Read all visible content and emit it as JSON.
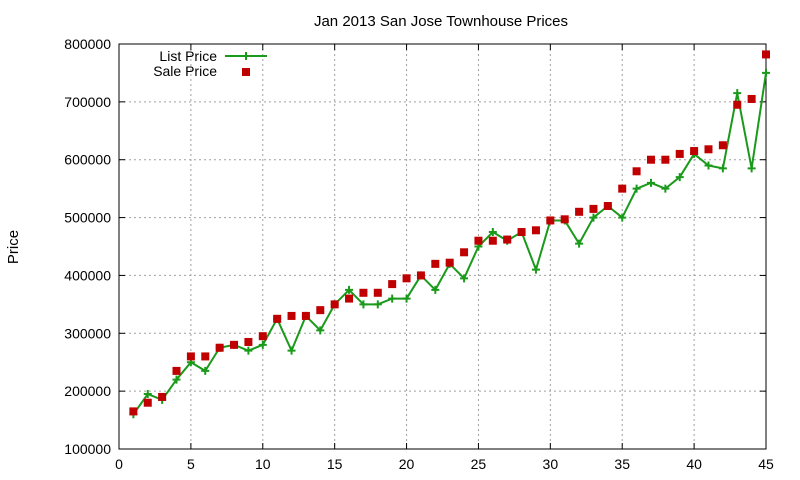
{
  "chart_data": {
    "type": "line",
    "title": "Jan 2013 San Jose Townhouse Prices",
    "xlabel": "",
    "ylabel": "Price",
    "xlim": [
      0,
      45
    ],
    "ylim": [
      100000,
      800000
    ],
    "x_ticks": [
      "0",
      "5",
      "10",
      "15",
      "20",
      "25",
      "30",
      "35",
      "40",
      "45"
    ],
    "y_ticks": [
      "100000",
      "200000",
      "300000",
      "400000",
      "500000",
      "600000",
      "700000",
      "800000"
    ],
    "grid": true,
    "legend_position": "top-left",
    "series": [
      {
        "name": "List Price",
        "style": "line-with-plus-markers",
        "color": "#1a9a1a",
        "x": [
          1,
          2,
          3,
          4,
          5,
          6,
          7,
          8,
          9,
          10,
          11,
          12,
          13,
          14,
          15,
          16,
          17,
          18,
          19,
          20,
          21,
          22,
          23,
          24,
          25,
          26,
          27,
          28,
          29,
          30,
          31,
          32,
          33,
          34,
          35,
          36,
          37,
          38,
          39,
          40,
          41,
          42,
          43,
          44,
          45
        ],
        "values": [
          160000,
          195000,
          185000,
          220000,
          250000,
          235000,
          275000,
          280000,
          270000,
          280000,
          325000,
          270000,
          330000,
          305000,
          350000,
          375000,
          350000,
          350000,
          360000,
          360000,
          400000,
          375000,
          420000,
          395000,
          450000,
          475000,
          460000,
          475000,
          410000,
          495000,
          495000,
          455000,
          500000,
          520000,
          500000,
          550000,
          560000,
          550000,
          570000,
          610000,
          590000,
          585000,
          715000,
          585000,
          750000
        ]
      },
      {
        "name": "Sale Price",
        "style": "square-markers",
        "color": "#c00000",
        "x": [
          1,
          2,
          3,
          4,
          5,
          6,
          7,
          8,
          9,
          10,
          11,
          12,
          13,
          14,
          15,
          16,
          17,
          18,
          19,
          20,
          21,
          22,
          23,
          24,
          25,
          26,
          27,
          28,
          29,
          30,
          31,
          32,
          33,
          34,
          35,
          36,
          37,
          38,
          39,
          40,
          41,
          42,
          43,
          44,
          45
        ],
        "values": [
          165000,
          180000,
          190000,
          235000,
          260000,
          260000,
          275000,
          280000,
          285000,
          295000,
          325000,
          330000,
          330000,
          340000,
          350000,
          360000,
          370000,
          370000,
          385000,
          395000,
          400000,
          420000,
          422000,
          440000,
          460000,
          460000,
          462000,
          475000,
          478000,
          495000,
          497000,
          510000,
          515000,
          520000,
          550000,
          580000,
          600000,
          600000,
          610000,
          615000,
          618000,
          625000,
          695000,
          705000,
          782000
        ]
      }
    ]
  }
}
